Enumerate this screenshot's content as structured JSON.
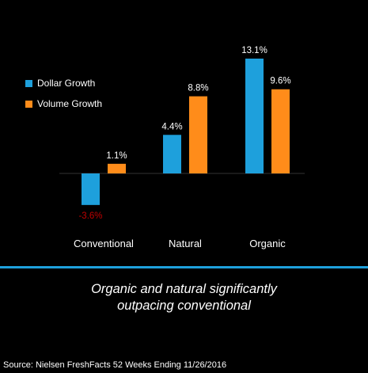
{
  "chart_data": {
    "type": "bar",
    "categories": [
      "Conventional",
      "Natural",
      "Organic"
    ],
    "series": [
      {
        "name": "Dollar Growth",
        "values": [
          -3.6,
          4.4,
          13.1
        ],
        "labels": [
          "-3.6%",
          "4.4%",
          "13.1%"
        ],
        "color": "#1ea0dc"
      },
      {
        "name": "Volume Growth",
        "values": [
          1.1,
          8.8,
          9.6
        ],
        "labels": [
          "1.1%",
          "8.8%",
          "9.6%"
        ],
        "color": "#ff8c1a"
      }
    ],
    "negative_label_color": "#c00000",
    "legend_position": "left",
    "grid": false
  },
  "caption": {
    "line1": "Organic and natural significantly",
    "line2": "outpacing conventional"
  },
  "source": "Source: Nielsen FreshFacts 52 Weeks Ending 11/26/2016",
  "colors": {
    "background": "#000000",
    "divider": "#1ea0dc",
    "text": "#ffffff"
  }
}
